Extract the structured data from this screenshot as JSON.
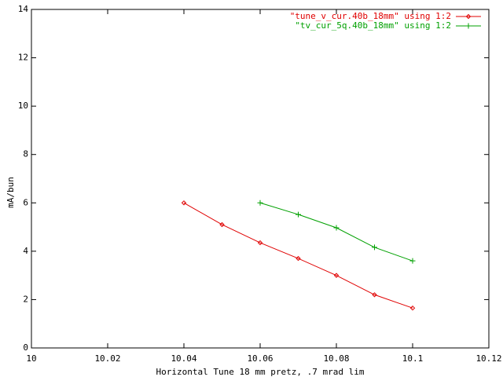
{
  "chart_data": {
    "type": "line",
    "xlabel": "Horizontal Tune 18 mm pretz, .7 mrad lim",
    "ylabel": "mA/bun",
    "xlim": [
      10,
      10.12
    ],
    "xticks": [
      10,
      10.02,
      10.04,
      10.06,
      10.08,
      10.1,
      10.12
    ],
    "ylim": [
      0,
      14
    ],
    "yticks": [
      0,
      2,
      4,
      6,
      8,
      10,
      12,
      14
    ],
    "legend": "top-right",
    "series": [
      {
        "name": "\"tune_v_cur.40b_18mm\" using 1:2",
        "color": "#e00000",
        "marker": "diamond",
        "x": [
          10.04,
          10.05,
          10.06,
          10.07,
          10.08,
          10.09,
          10.1
        ],
        "values": [
          6.0,
          5.1,
          4.35,
          3.7,
          3.0,
          2.2,
          1.65
        ]
      },
      {
        "name": "\"tv_cur_5q.40b_18mm\" using 1:2",
        "color": "#00a000",
        "marker": "plus",
        "x": [
          10.06,
          10.07,
          10.08,
          10.09,
          10.1
        ],
        "values": [
          6.0,
          5.52,
          4.97,
          4.16,
          3.6
        ]
      }
    ]
  }
}
